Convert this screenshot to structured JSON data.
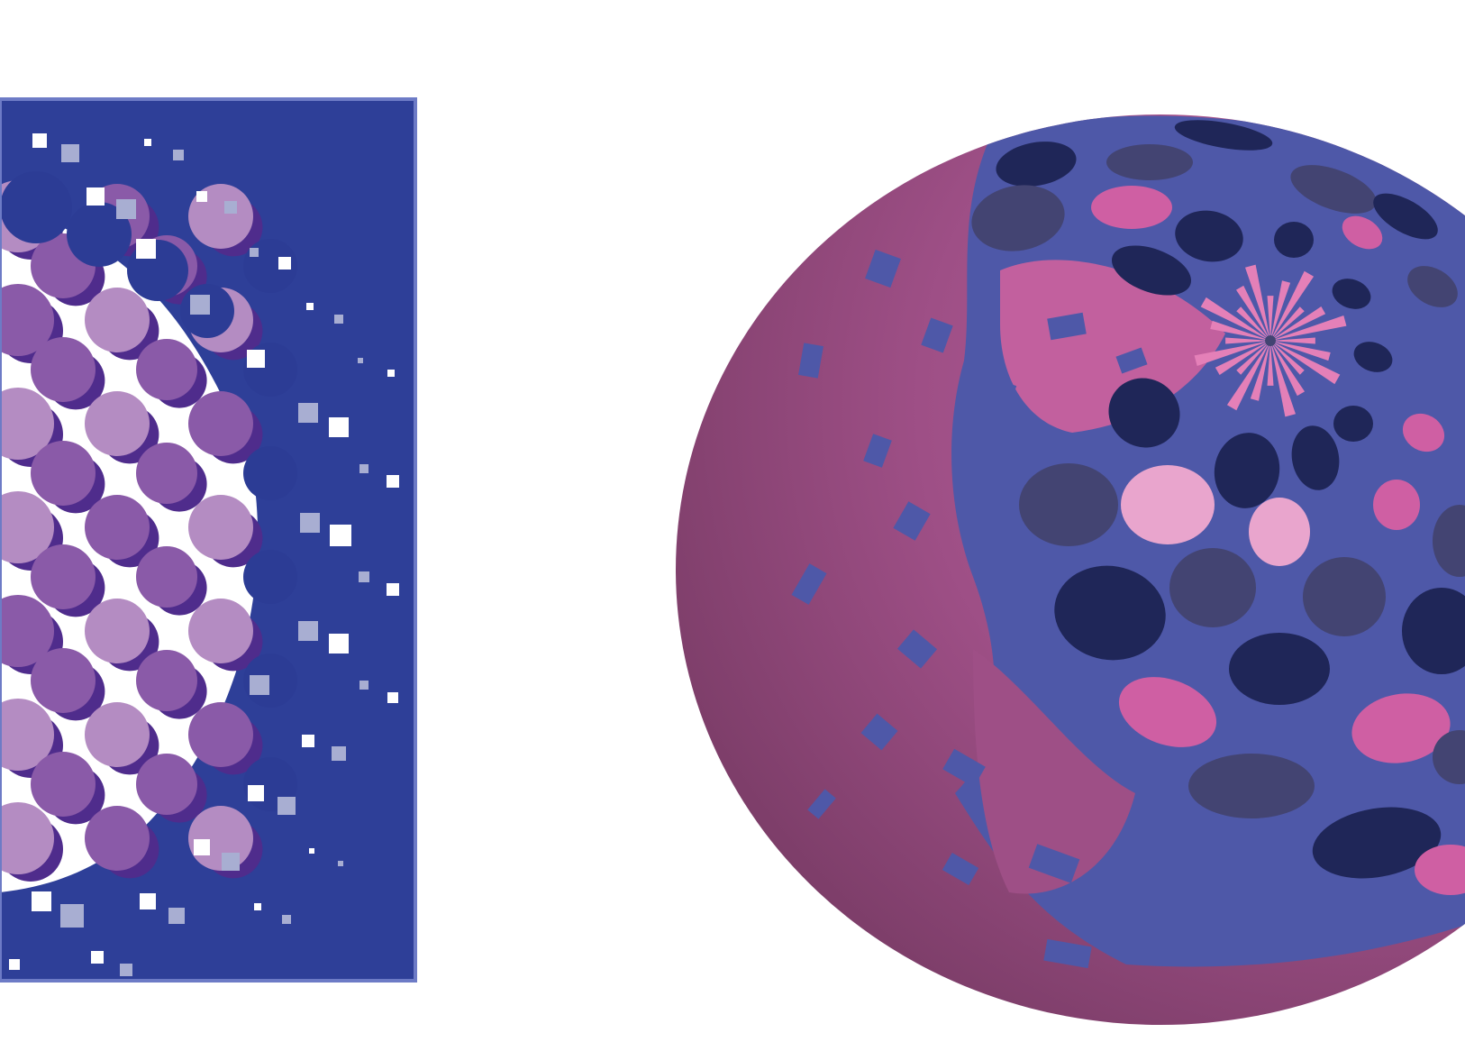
{
  "canvas": {
    "background": "#ffffff"
  },
  "panel": {
    "icon": "halftone-dot-pattern",
    "colors": {
      "background": "#2e3f98",
      "border": "#6d7bc6",
      "dot_light": "#b48cc2",
      "dot_mid": "#8a5aa8",
      "dot_dark": "#4f2c8c",
      "dot_navy": "#2c3c95",
      "square_white": "#ffffff",
      "square_grey": "#a8aed2",
      "halftone_field": "#ffffff"
    }
  },
  "sphere": {
    "icon": "spotted-sphere",
    "colors": {
      "body_light": "#c2609e",
      "body_mid": "#9e4f86",
      "body_dark": "#763a63",
      "band": "#4e58a8",
      "spot_navy": "#1f2658",
      "spot_slate": "#434472",
      "spot_pink": "#cf5fa3",
      "spot_pale": "#e9a5cd",
      "ray": "#e480b8"
    }
  }
}
